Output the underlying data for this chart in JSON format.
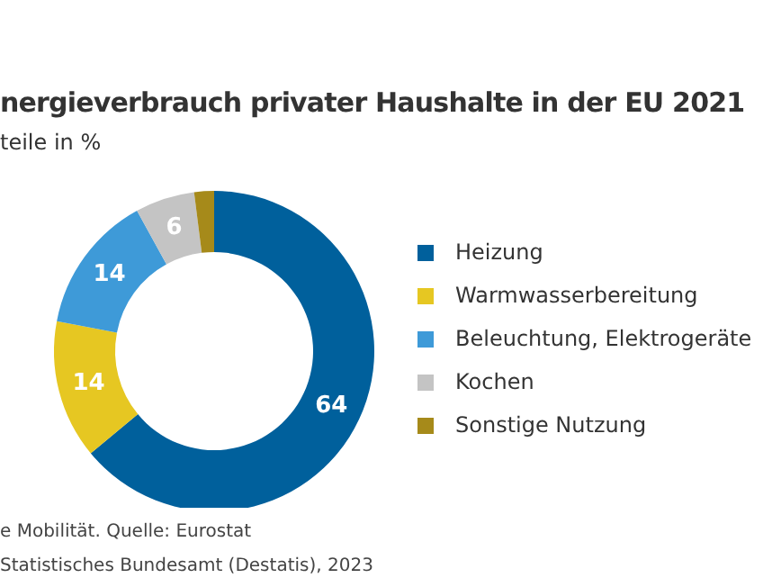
{
  "chart_data": {
    "type": "donut",
    "title": "nergieverbrauch privater Haushalte in der EU 2021",
    "subtitle": "teile in %",
    "categories": [
      "Heizung",
      "Warmwasserbereitung",
      "Beleuchtung, Elektrogeräte",
      "Kochen",
      "Sonstige Nutzung"
    ],
    "values": [
      64,
      14,
      14,
      6,
      2
    ],
    "value_labels": [
      "64",
      "14",
      "14",
      "6",
      null
    ],
    "colors": [
      "#00609c",
      "#e6c722",
      "#3e9ad8",
      "#c4c4c4",
      "#a68a1a"
    ],
    "legend": "right",
    "annotations": [
      "e Mobilität. Quelle: Eurostat",
      "Statistisches Bundesamt (Destatis), 2023"
    ]
  }
}
